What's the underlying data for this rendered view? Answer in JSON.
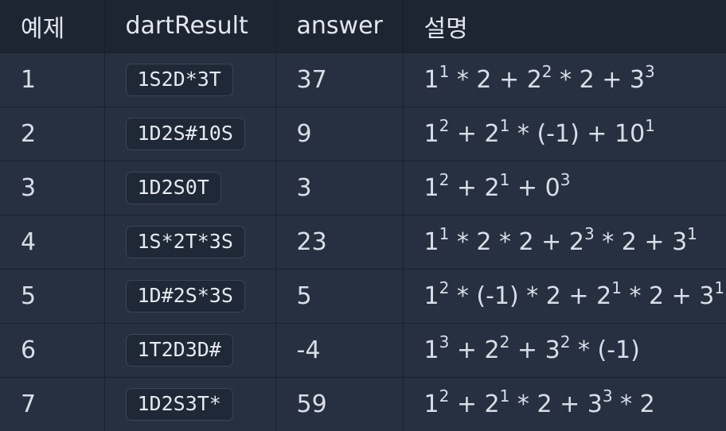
{
  "table": {
    "headers": [
      "예제",
      "dartResult",
      "answer",
      "설명"
    ],
    "rows": [
      {
        "id": "1",
        "dart": "1S2D*3T",
        "answer": "37",
        "expl": "1^1 * 2 + 2^2 * 2 + 3^3"
      },
      {
        "id": "2",
        "dart": "1D2S#10S",
        "answer": "9",
        "expl": "1^2 + 2^1 * (-1) + 10^1"
      },
      {
        "id": "3",
        "dart": "1D2S0T",
        "answer": "3",
        "expl": "1^2 + 2^1 + 0^3"
      },
      {
        "id": "4",
        "dart": "1S*2T*3S",
        "answer": "23",
        "expl": "1^1 * 2 * 2 + 2^3 * 2 + 3^1"
      },
      {
        "id": "5",
        "dart": "1D#2S*3S",
        "answer": "5",
        "expl": "1^2 * (-1) * 2 + 2^1 * 2 + 3^1"
      },
      {
        "id": "6",
        "dart": "1T2D3D#",
        "answer": "-4",
        "expl": "1^3 + 2^2 + 3^2 * (-1)"
      },
      {
        "id": "7",
        "dart": "1D2S3T*",
        "answer": "59",
        "expl": "1^2 + 2^1 * 2 + 3^3 * 2"
      }
    ]
  }
}
